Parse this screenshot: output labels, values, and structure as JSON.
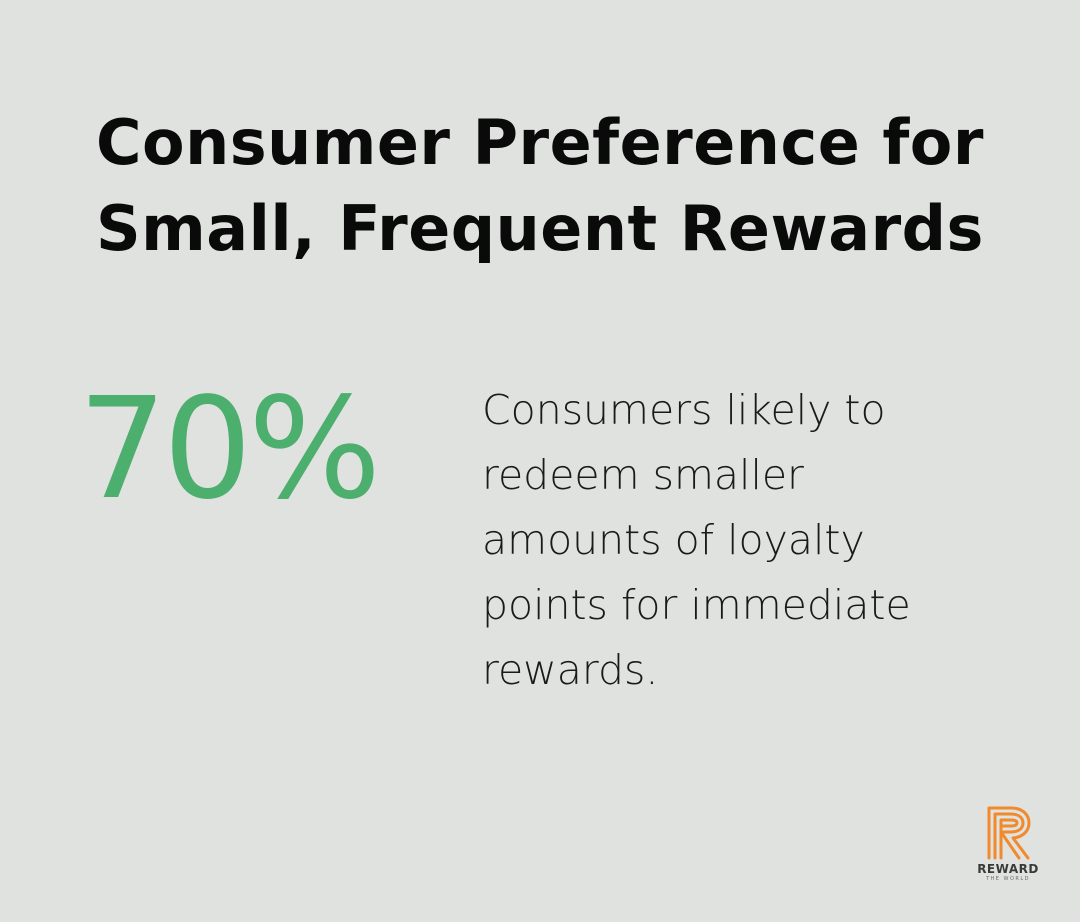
{
  "title": {
    "line1": "Consumer Preference for",
    "line2": "Small, Frequent Rewards"
  },
  "stat": {
    "value": "70%",
    "description_lines": [
      "Consumers likely to",
      "redeem smaller",
      "amounts of loyalty",
      "points for immediate",
      "rewards."
    ]
  },
  "logo": {
    "name": "REWARD",
    "tagline": "THE WORLD",
    "icon": "r-logo-icon",
    "color": "#f08a2c"
  },
  "colors": {
    "background": "#e0e2e0",
    "accent": "#4caf6e",
    "title": "#0a0a0a",
    "text": "#1a1a1a"
  }
}
